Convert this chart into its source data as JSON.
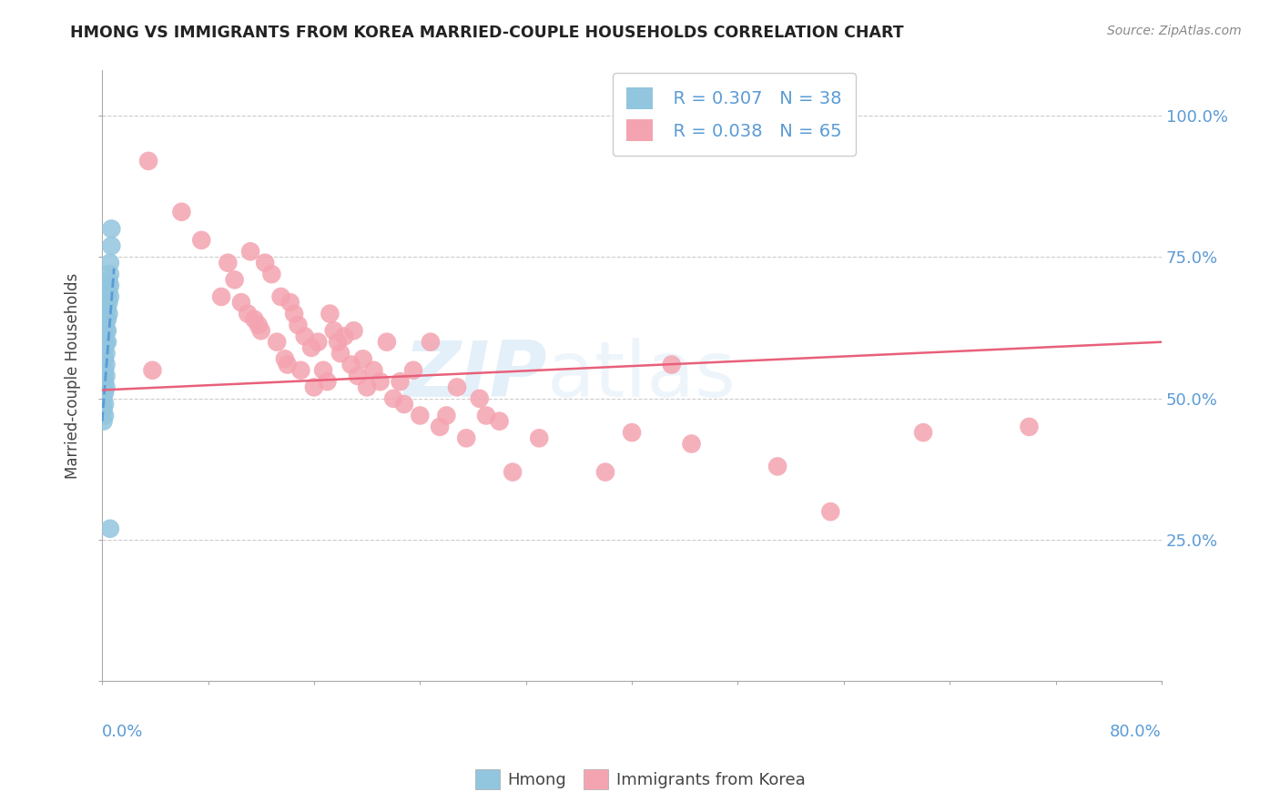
{
  "title": "HMONG VS IMMIGRANTS FROM KOREA MARRIED-COUPLE HOUSEHOLDS CORRELATION CHART",
  "source": "Source: ZipAtlas.com",
  "ylabel": "Married-couple Households",
  "xmin": 0.0,
  "xmax": 0.8,
  "ymin": 0.0,
  "ymax": 1.08,
  "watermark_zip": "ZIP",
  "watermark_atlas": "atlas",
  "legend_hmong_R": "R = 0.307",
  "legend_hmong_N": "N = 38",
  "legend_korea_R": "R = 0.038",
  "legend_korea_N": "N = 65",
  "hmong_color": "#92c5de",
  "korea_color": "#f4a4b0",
  "hmong_line_color": "#5b9bd5",
  "korea_line_color": "#e8607a",
  "hmong_scatter_x": [
    0.001,
    0.001,
    0.001,
    0.001,
    0.001,
    0.002,
    0.002,
    0.002,
    0.002,
    0.002,
    0.002,
    0.002,
    0.002,
    0.002,
    0.003,
    0.003,
    0.003,
    0.003,
    0.003,
    0.003,
    0.003,
    0.003,
    0.004,
    0.004,
    0.004,
    0.004,
    0.004,
    0.005,
    0.005,
    0.005,
    0.005,
    0.006,
    0.006,
    0.006,
    0.006,
    0.006,
    0.007,
    0.007
  ],
  "hmong_scatter_y": [
    0.54,
    0.52,
    0.5,
    0.48,
    0.46,
    0.63,
    0.61,
    0.59,
    0.57,
    0.55,
    0.53,
    0.51,
    0.49,
    0.47,
    0.66,
    0.64,
    0.62,
    0.6,
    0.58,
    0.56,
    0.54,
    0.52,
    0.68,
    0.66,
    0.64,
    0.62,
    0.6,
    0.71,
    0.69,
    0.67,
    0.65,
    0.74,
    0.72,
    0.7,
    0.68,
    0.27,
    0.8,
    0.77
  ],
  "korea_scatter_x": [
    0.035,
    0.038,
    0.06,
    0.075,
    0.09,
    0.095,
    0.1,
    0.105,
    0.11,
    0.112,
    0.115,
    0.118,
    0.12,
    0.123,
    0.128,
    0.132,
    0.135,
    0.138,
    0.14,
    0.142,
    0.145,
    0.148,
    0.15,
    0.153,
    0.158,
    0.16,
    0.163,
    0.167,
    0.17,
    0.172,
    0.175,
    0.178,
    0.18,
    0.183,
    0.188,
    0.19,
    0.193,
    0.197,
    0.2,
    0.205,
    0.21,
    0.215,
    0.22,
    0.225,
    0.228,
    0.235,
    0.24,
    0.248,
    0.255,
    0.26,
    0.268,
    0.275,
    0.285,
    0.29,
    0.3,
    0.31,
    0.33,
    0.38,
    0.4,
    0.43,
    0.445,
    0.51,
    0.55,
    0.62,
    0.7
  ],
  "korea_scatter_y": [
    0.92,
    0.55,
    0.83,
    0.78,
    0.68,
    0.74,
    0.71,
    0.67,
    0.65,
    0.76,
    0.64,
    0.63,
    0.62,
    0.74,
    0.72,
    0.6,
    0.68,
    0.57,
    0.56,
    0.67,
    0.65,
    0.63,
    0.55,
    0.61,
    0.59,
    0.52,
    0.6,
    0.55,
    0.53,
    0.65,
    0.62,
    0.6,
    0.58,
    0.61,
    0.56,
    0.62,
    0.54,
    0.57,
    0.52,
    0.55,
    0.53,
    0.6,
    0.5,
    0.53,
    0.49,
    0.55,
    0.47,
    0.6,
    0.45,
    0.47,
    0.52,
    0.43,
    0.5,
    0.47,
    0.46,
    0.37,
    0.43,
    0.37,
    0.44,
    0.56,
    0.42,
    0.38,
    0.3,
    0.44,
    0.45
  ],
  "hmong_line_x": [
    0.0,
    0.009
  ],
  "hmong_line_y_start": 0.46,
  "hmong_line_y_end": 0.73,
  "korea_line_x": [
    0.0,
    0.8
  ],
  "korea_line_y_start": 0.515,
  "korea_line_y_end": 0.6
}
